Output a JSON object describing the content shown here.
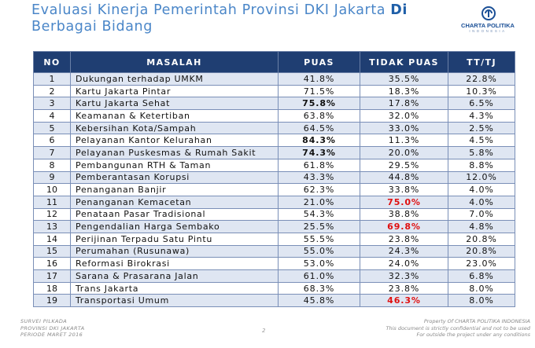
{
  "header": {
    "title_part1": "Evaluasi Kinerja Pemerintah Provinsi DKI Jakarta ",
    "title_part2": "Di",
    "title_line2": "Berbagai Bidang"
  },
  "logo": {
    "name": "CHARTA POLITIKA",
    "sub": "INDONESIA"
  },
  "table": {
    "headers": [
      "NO",
      "MASALAH",
      "PUAS",
      "TIDAK PUAS",
      "TT/TJ"
    ],
    "rows": [
      {
        "no": "1",
        "masalah": "Dukungan terhadap UMKM",
        "puas": "41.8%",
        "tidak": "35.5%",
        "tt": "22.8%"
      },
      {
        "no": "2",
        "masalah": "Kartu Jakarta Pintar",
        "puas": "71.5%",
        "tidak": "18.3%",
        "tt": "10.3%"
      },
      {
        "no": "3",
        "masalah": "Kartu Jakarta Sehat",
        "puas": "75.8%",
        "tidak": "17.8%",
        "tt": "6.5%"
      },
      {
        "no": "4",
        "masalah": "Keamanan & Ketertiban",
        "puas": "63.8%",
        "tidak": "32.0%",
        "tt": "4.3%"
      },
      {
        "no": "5",
        "masalah": "Kebersihan Kota/Sampah",
        "puas": "64.5%",
        "tidak": "33.0%",
        "tt": "2.5%"
      },
      {
        "no": "6",
        "masalah": "Pelayanan Kantor Kelurahan",
        "puas": "84.3%",
        "tidak": "11.3%",
        "tt": "4.5%"
      },
      {
        "no": "7",
        "masalah": "Pelayanan Puskesmas & Rumah Sakit",
        "puas": "74.3%",
        "tidak": "20.0%",
        "tt": "5.8%"
      },
      {
        "no": "8",
        "masalah": "Pembangunan RTH & Taman",
        "puas": "61.8%",
        "tidak": "29.5%",
        "tt": "8.8%"
      },
      {
        "no": "9",
        "masalah": "Pemberantasan Korupsi",
        "puas": "43.3%",
        "tidak": "44.8%",
        "tt": "12.0%"
      },
      {
        "no": "10",
        "masalah": "Penanganan Banjir",
        "puas": "62.3%",
        "tidak": "33.8%",
        "tt": "4.0%"
      },
      {
        "no": "11",
        "masalah": "Penanganan Kemacetan",
        "puas": "21.0%",
        "tidak": "75.0%",
        "tt": "4.0%"
      },
      {
        "no": "12",
        "masalah": "Penataan Pasar Tradisional",
        "puas": "54.3%",
        "tidak": "38.8%",
        "tt": "7.0%"
      },
      {
        "no": "13",
        "masalah": "Pengendalian Harga Sembako",
        "puas": "25.5%",
        "tidak": "69.8%",
        "tt": "4.8%"
      },
      {
        "no": "14",
        "masalah": "Perijinan Terpadu Satu Pintu",
        "puas": "55.5%",
        "tidak": "23.8%",
        "tt": "20.8%"
      },
      {
        "no": "15",
        "masalah": "Perumahan (Rusunawa)",
        "puas": "55.0%",
        "tidak": "24.3%",
        "tt": "20.8%"
      },
      {
        "no": "16",
        "masalah": "Reformasi Birokrasi",
        "puas": "53.0%",
        "tidak": "24.0%",
        "tt": "23.0%"
      },
      {
        "no": "17",
        "masalah": "Sarana & Prasarana Jalan",
        "puas": "61.0%",
        "tidak": "32.3%",
        "tt": "6.8%"
      },
      {
        "no": "18",
        "masalah": "Trans Jakarta",
        "puas": "68.3%",
        "tidak": "23.8%",
        "tt": "8.0%"
      },
      {
        "no": "19",
        "masalah": "Transportasi Umum",
        "puas": "45.8%",
        "tidak": "46.3%",
        "tt": "8.0%"
      }
    ]
  },
  "highlights": {
    "bold_puas_rows": [
      3,
      6,
      7
    ],
    "red_tidak_rows": [
      11,
      13,
      19
    ],
    "red_color": "#e01010",
    "header_bg": "#1f3e72",
    "stripe_bg": "#dfe6f2"
  },
  "footer": {
    "left_line1": "SURVEI PILKADA",
    "left_line2": "PROVINSI DKI JAKARTA",
    "left_line3": "PERIODE MARET 2016",
    "page_number": "2",
    "right_line1": "Property Of CHARTA POLITIKA INDONESIA",
    "right_line2": "This document is strictly confidential and not to be used",
    "right_line3": "For outside the project under any conditions"
  }
}
